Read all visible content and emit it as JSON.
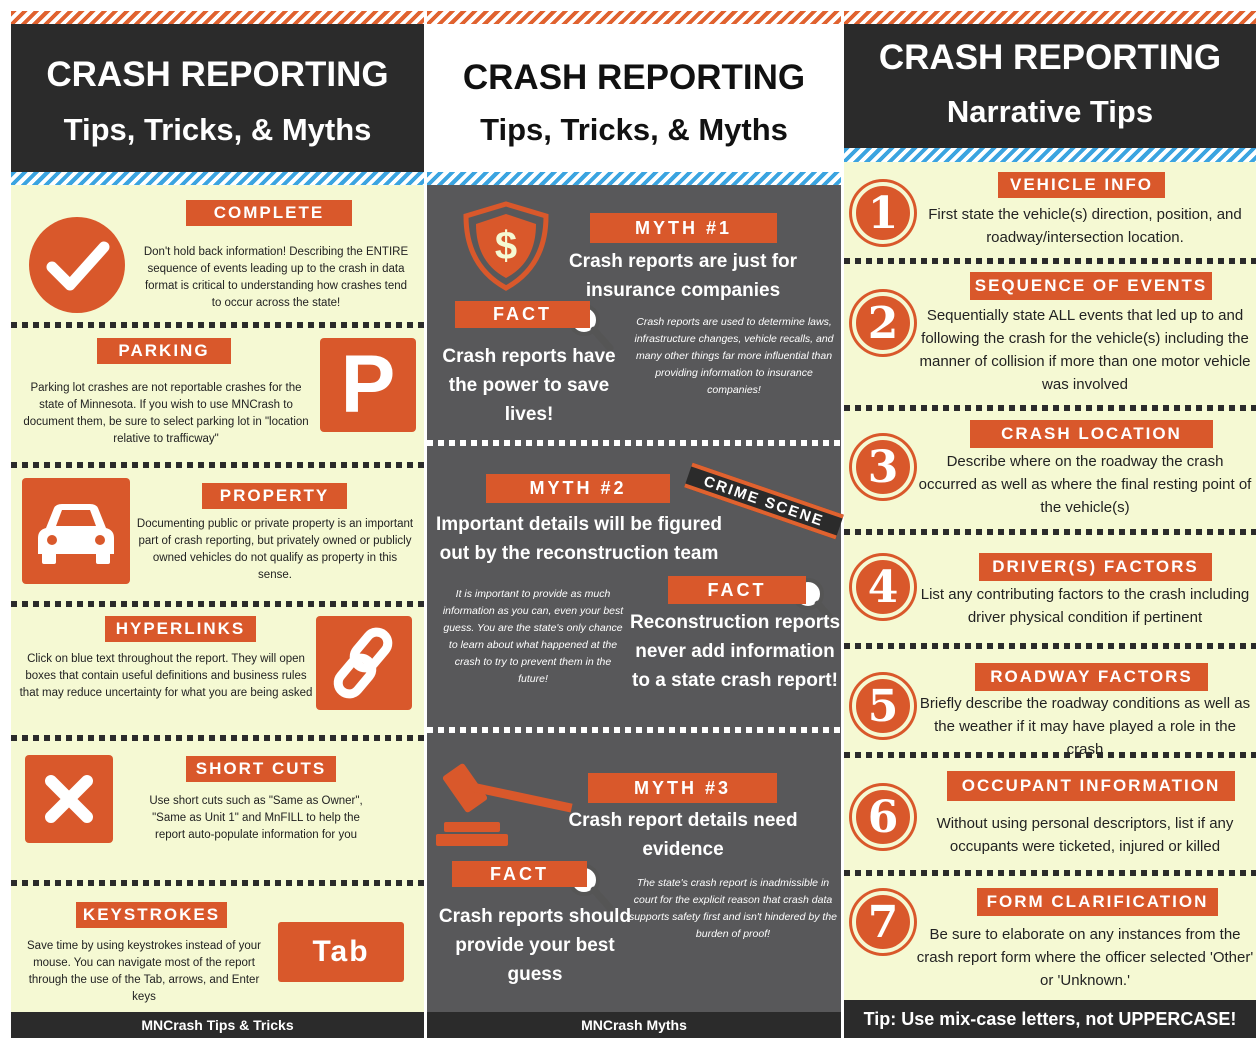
{
  "panels": [
    {
      "title": "CRASH REPORTING",
      "subtitle": "Tips, Tricks, & Myths",
      "sections": [
        {
          "heading": "COMPLETE",
          "text": "Don't hold back information! Describing the ENTIRE sequence of events leading up to the crash in data format is critical to understanding how crashes tend to occur across the state!"
        },
        {
          "heading": "PARKING",
          "text": "Parking lot crashes are not reportable crashes for the state of Minnesota. If you wish to use MNCrash to document them, be sure to select parking lot in \"location relative to trafficway\"",
          "icon_text": "P"
        },
        {
          "heading": "PROPERTY",
          "text": "Documenting public or private property is an important part of crash reporting, but privately owned or publicly owned vehicles do not qualify as property in this sense."
        },
        {
          "heading": "HYPERLINKS",
          "text": "Click on blue text throughout the report. They will open boxes that contain useful definitions and business rules that may reduce uncertainty for what you are being asked"
        },
        {
          "heading": "SHORT CUTS",
          "text": "Use short cuts such as \"Same as Owner\", \"Same as Unit 1\" and MnFILL to help the report auto-populate information for you"
        },
        {
          "heading": "KEYSTROKES",
          "text": "Save time by using keystrokes instead of your mouse. You can navigate most of the report through the use of the Tab, arrows, and Enter keys",
          "icon_text": "Tab"
        }
      ],
      "footer": "MNCrash Tips & Tricks"
    },
    {
      "title": "CRASH REPORTING",
      "subtitle": "Tips, Tricks, & Myths",
      "myths": [
        {
          "label": "MYTH #1",
          "myth": "Crash reports are just for insurance companies",
          "fact_label": "FACT",
          "fact": "Crash reports have the power to save lives!",
          "detail": "Crash reports are used to determine laws, infrastructure changes, vehicle recalls, and many other things far more influential than providing information to insurance companies!",
          "icon_text": "$"
        },
        {
          "label": "MYTH #2",
          "myth": "Important details will be figured out by the reconstruction team",
          "fact_label": "FACT",
          "fact": "Reconstruction reports never add information to a state crash report!",
          "detail": "It is important to provide as much information as you can, even your best guess. You are the state's only chance to learn about what happened at the crash to try to prevent them in the future!"
        },
        {
          "label": "MYTH #3",
          "myth": "Crash report details need evidence",
          "fact_label": "FACT",
          "fact": "Crash reports should provide your best guess",
          "detail": "The state's crash report is inadmissible in court for the explicit reason that crash data supports safety first and isn't hindered by the burden of proof!"
        }
      ],
      "tape": "CRIME SCENE",
      "footer": "MNCrash Myths"
    },
    {
      "title": "CRASH REPORTING",
      "subtitle": "Narrative Tips",
      "tips": [
        {
          "number": "1",
          "heading": "VEHICLE INFO",
          "text": "First state the vehicle(s) direction, position, and roadway/intersection location."
        },
        {
          "number": "2",
          "heading": "SEQUENCE OF EVENTS",
          "text": "Sequentially state ALL events that led up to and following the crash for the vehicle(s) including the manner of collision if more than one motor vehicle was involved"
        },
        {
          "number": "3",
          "heading": "CRASH LOCATION",
          "text": "Describe where on the roadway the crash occurred as well as where the final resting point of the vehicle(s)"
        },
        {
          "number": "4",
          "heading": "DRIVER(S) FACTORS",
          "text": "List any contributing factors to the crash including driver physical condition if pertinent"
        },
        {
          "number": "5",
          "heading": "ROADWAY FACTORS",
          "text": "Briefly describe the roadway conditions as well as the weather if it may have played a role in the crash"
        },
        {
          "number": "6",
          "heading": "OCCUPANT INFORMATION",
          "text": "Without using personal descriptors, list if any occupants were ticketed, injured or killed"
        },
        {
          "number": "7",
          "heading": "FORM CLARIFICATION",
          "text": "Be sure to elaborate on any instances from the crash report form where the officer selected 'Other' or 'Unknown.'"
        }
      ],
      "footer": "Tip: Use mix-case letters, not UPPERCASE!"
    }
  ]
}
